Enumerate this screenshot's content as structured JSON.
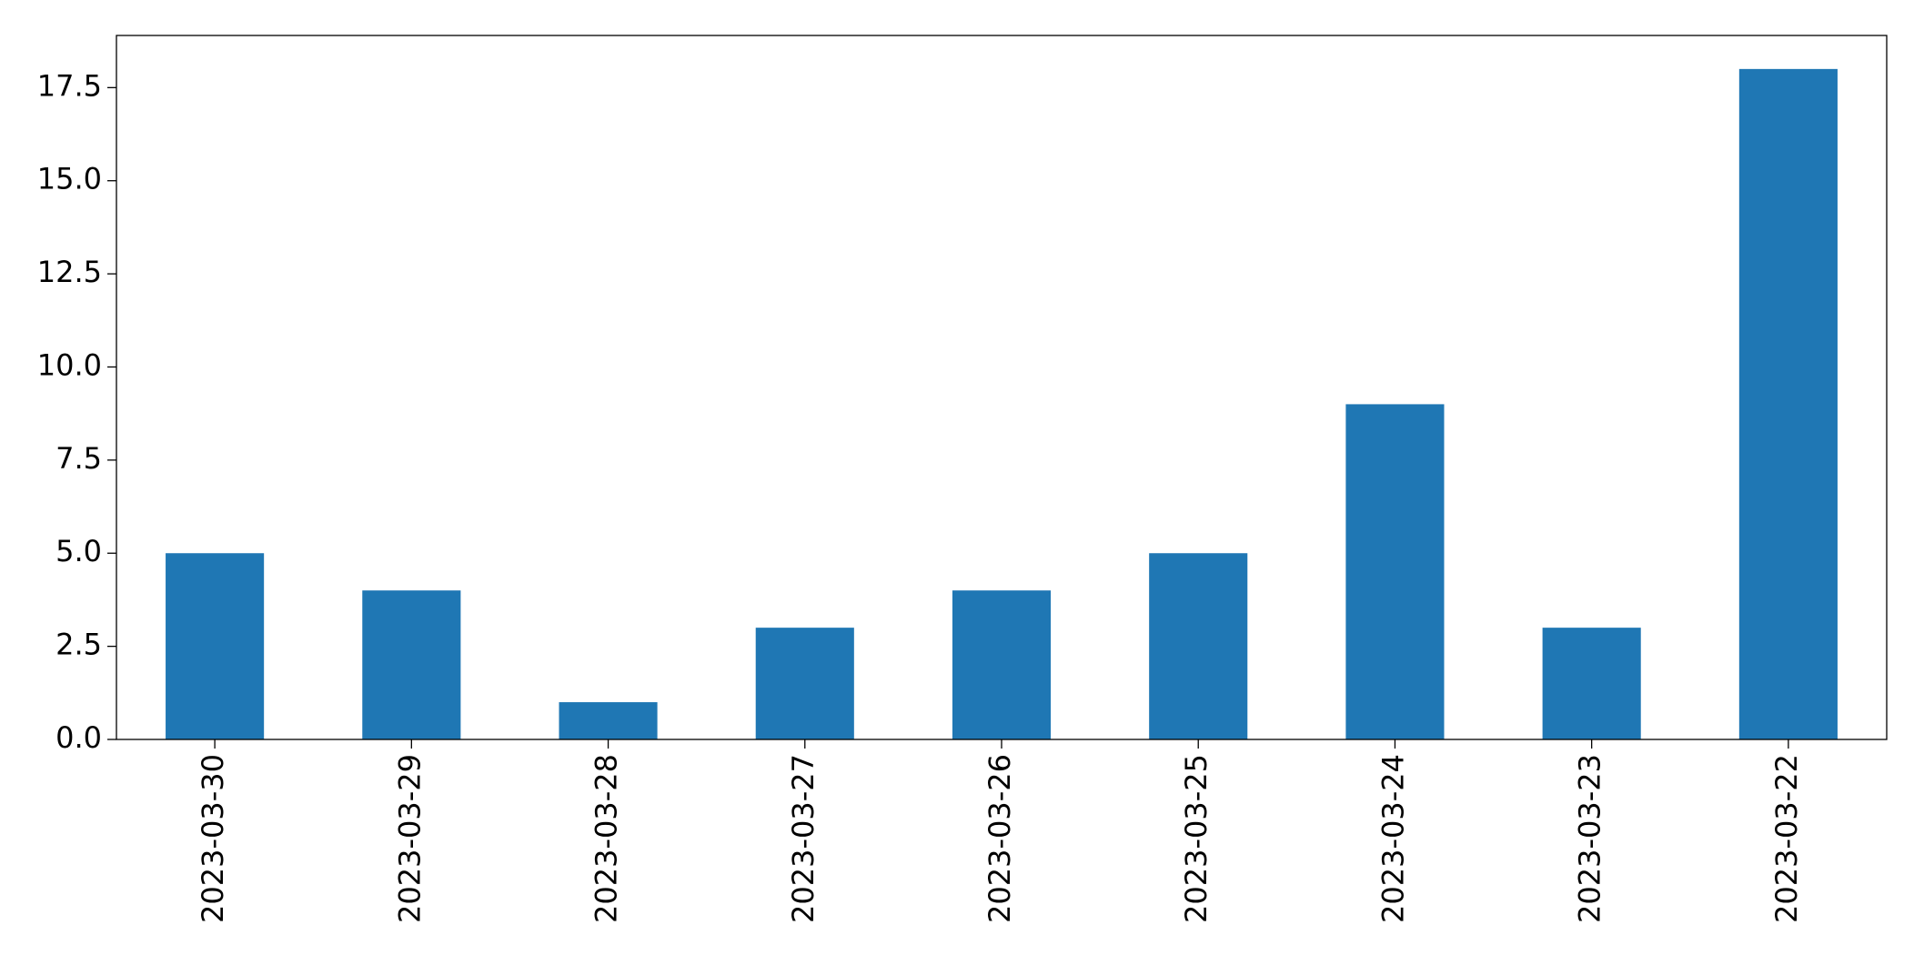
{
  "chart_data": {
    "type": "bar",
    "categories": [
      "2023-03-30",
      "2023-03-29",
      "2023-03-28",
      "2023-03-27",
      "2023-03-26",
      "2023-03-25",
      "2023-03-24",
      "2023-03-23",
      "2023-03-22"
    ],
    "values": [
      5,
      4,
      1,
      3,
      4,
      5,
      9,
      3,
      18
    ],
    "color": "#1f77b4",
    "ylim": [
      0,
      18.9
    ],
    "yticks": [
      {
        "value": 0,
        "label": "0.0"
      },
      2.5,
      {
        "value": 5,
        "label": "5.0"
      },
      7.5,
      {
        "value": 10,
        "label": "10.0"
      },
      12.5,
      {
        "value": 15,
        "label": "15.0"
      },
      17.5
    ],
    "grid": false
  }
}
